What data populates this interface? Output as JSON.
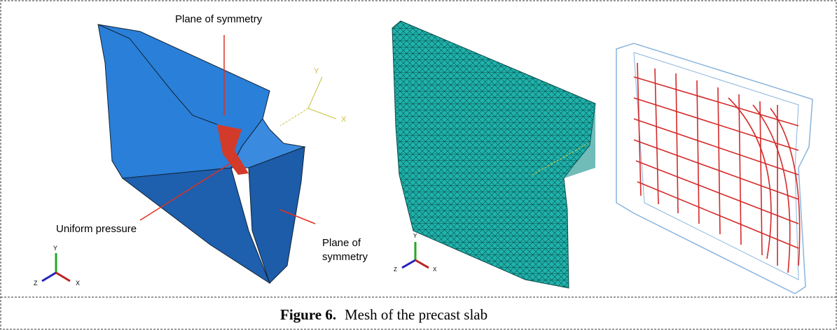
{
  "figure": {
    "label": "Figure 6.",
    "caption": "Mesh of the precast slab"
  },
  "panels": [
    {
      "annotations": {
        "top": "Plane of symmetry",
        "pressure": "Uniform pressure",
        "side": [
          "Plane of",
          "symmetry"
        ]
      },
      "triad": [
        "Y",
        "Z",
        "X"
      ],
      "global_axes": [
        "Y",
        "X"
      ]
    },
    {
      "triad": [
        "Y",
        "Z",
        "X"
      ]
    }
  ]
}
